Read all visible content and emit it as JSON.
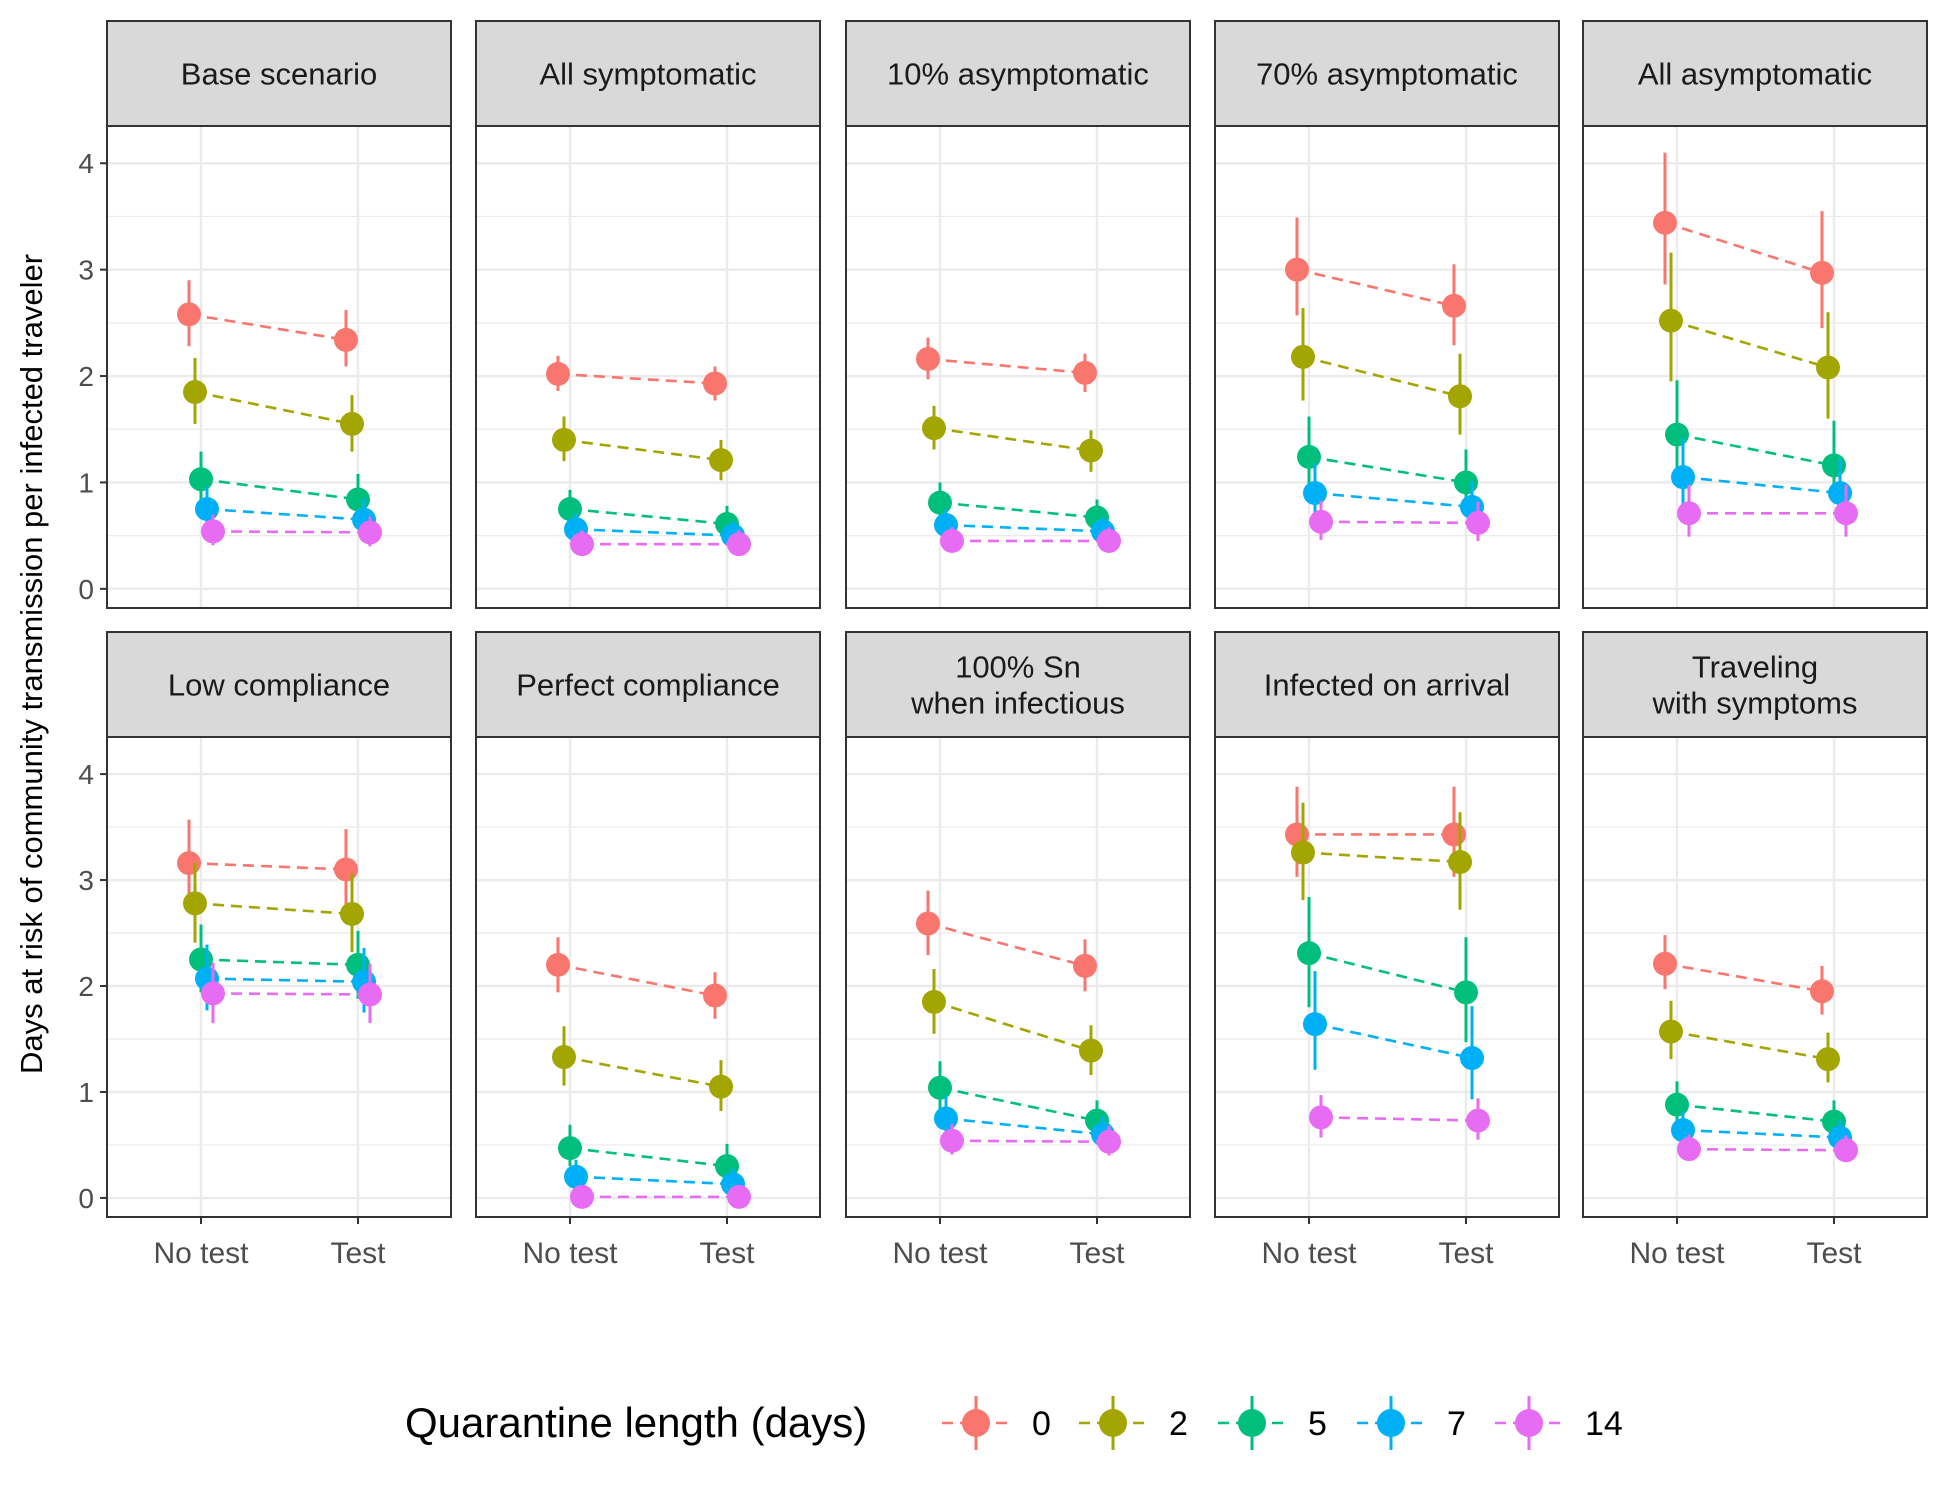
{
  "chart_data": {
    "type": "scatter",
    "ylabel": "Days at risk of community transmission per infected traveler",
    "xlabel": "",
    "x_categories": [
      "No test",
      "Test"
    ],
    "y_ticks": [
      0,
      1,
      2,
      3,
      4
    ],
    "ylim": [
      -0.18,
      4.35
    ],
    "grid": true,
    "legend": {
      "title": "Quarantine length (days)",
      "position": "bottom",
      "entries": [
        {
          "label": "0",
          "color": "#F8766D"
        },
        {
          "label": "2",
          "color": "#A3A500"
        },
        {
          "label": "5",
          "color": "#00BF7D"
        },
        {
          "label": "7",
          "color": "#00B0F6"
        },
        {
          "label": "14",
          "color": "#E76BF3"
        }
      ]
    },
    "facets": [
      {
        "title": [
          "Base scenario"
        ],
        "series": [
          {
            "quarantine": "0",
            "values": [
              2.58,
              2.34
            ],
            "lower": [
              2.28,
              2.09
            ],
            "upper": [
              2.9,
              2.62
            ]
          },
          {
            "quarantine": "2",
            "values": [
              1.85,
              1.55
            ],
            "lower": [
              1.55,
              1.29
            ],
            "upper": [
              2.17,
              1.82
            ]
          },
          {
            "quarantine": "5",
            "values": [
              1.03,
              0.84
            ],
            "lower": [
              0.82,
              0.63
            ],
            "upper": [
              1.29,
              1.08
            ]
          },
          {
            "quarantine": "7",
            "values": [
              0.75,
              0.65
            ],
            "lower": [
              0.58,
              0.49
            ],
            "upper": [
              0.96,
              0.85
            ]
          },
          {
            "quarantine": "14",
            "values": [
              0.54,
              0.53
            ],
            "lower": [
              0.41,
              0.4
            ],
            "upper": [
              0.7,
              0.68
            ]
          }
        ]
      },
      {
        "title": [
          "All symptomatic"
        ],
        "series": [
          {
            "quarantine": "0",
            "values": [
              2.02,
              1.93
            ],
            "lower": [
              1.86,
              1.77
            ],
            "upper": [
              2.19,
              2.09
            ]
          },
          {
            "quarantine": "2",
            "values": [
              1.4,
              1.21
            ],
            "lower": [
              1.2,
              1.02
            ],
            "upper": [
              1.62,
              1.4
            ]
          },
          {
            "quarantine": "5",
            "values": [
              0.75,
              0.61
            ],
            "lower": [
              0.6,
              0.47
            ],
            "upper": [
              0.93,
              0.78
            ]
          },
          {
            "quarantine": "7",
            "values": [
              0.56,
              0.5
            ],
            "lower": [
              0.44,
              0.38
            ],
            "upper": [
              0.71,
              0.64
            ]
          },
          {
            "quarantine": "14",
            "values": [
              0.42,
              0.42
            ],
            "lower": [
              0.31,
              0.31
            ],
            "upper": [
              0.55,
              0.55
            ]
          }
        ]
      },
      {
        "title": [
          "10% asymptomatic"
        ],
        "series": [
          {
            "quarantine": "0",
            "values": [
              2.16,
              2.03
            ],
            "lower": [
              1.97,
              1.85
            ],
            "upper": [
              2.36,
              2.21
            ]
          },
          {
            "quarantine": "2",
            "values": [
              1.51,
              1.3
            ],
            "lower": [
              1.31,
              1.1
            ],
            "upper": [
              1.72,
              1.49
            ]
          },
          {
            "quarantine": "5",
            "values": [
              0.81,
              0.67
            ],
            "lower": [
              0.64,
              0.52
            ],
            "upper": [
              1.0,
              0.84
            ]
          },
          {
            "quarantine": "7",
            "values": [
              0.6,
              0.54
            ],
            "lower": [
              0.47,
              0.42
            ],
            "upper": [
              0.75,
              0.68
            ]
          },
          {
            "quarantine": "14",
            "values": [
              0.45,
              0.45
            ],
            "lower": [
              0.34,
              0.34
            ],
            "upper": [
              0.58,
              0.58
            ]
          }
        ]
      },
      {
        "title": [
          "70% asymptomatic"
        ],
        "series": [
          {
            "quarantine": "0",
            "values": [
              3.0,
              2.66
            ],
            "lower": [
              2.57,
              2.29
            ],
            "upper": [
              3.49,
              3.05
            ]
          },
          {
            "quarantine": "2",
            "values": [
              2.18,
              1.81
            ],
            "lower": [
              1.77,
              1.45
            ],
            "upper": [
              2.64,
              2.21
            ]
          },
          {
            "quarantine": "5",
            "values": [
              1.24,
              1.0
            ],
            "lower": [
              0.94,
              0.74
            ],
            "upper": [
              1.62,
              1.31
            ]
          },
          {
            "quarantine": "7",
            "values": [
              0.9,
              0.77
            ],
            "lower": [
              0.67,
              0.57
            ],
            "upper": [
              1.18,
              1.01
            ]
          },
          {
            "quarantine": "14",
            "values": [
              0.63,
              0.62
            ],
            "lower": [
              0.46,
              0.45
            ],
            "upper": [
              0.83,
              0.82
            ]
          }
        ]
      },
      {
        "title": [
          "All asymptomatic"
        ],
        "series": [
          {
            "quarantine": "0",
            "values": [
              3.44,
              2.97
            ],
            "lower": [
              2.86,
              2.45
            ],
            "upper": [
              4.1,
              3.55
            ]
          },
          {
            "quarantine": "2",
            "values": [
              2.52,
              2.08
            ],
            "lower": [
              1.95,
              1.6
            ],
            "upper": [
              3.16,
              2.6
            ]
          },
          {
            "quarantine": "5",
            "values": [
              1.45,
              1.16
            ],
            "lower": [
              1.03,
              0.82
            ],
            "upper": [
              1.96,
              1.58
            ]
          },
          {
            "quarantine": "7",
            "values": [
              1.05,
              0.9
            ],
            "lower": [
              0.75,
              0.64
            ],
            "upper": [
              1.42,
              1.22
            ]
          },
          {
            "quarantine": "14",
            "values": [
              0.71,
              0.71
            ],
            "lower": [
              0.49,
              0.49
            ],
            "upper": [
              0.98,
              0.98
            ]
          }
        ]
      },
      {
        "title": [
          "Low compliance"
        ],
        "series": [
          {
            "quarantine": "0",
            "values": [
              3.16,
              3.1
            ],
            "lower": [
              2.8,
              2.73
            ],
            "upper": [
              3.57,
              3.48
            ]
          },
          {
            "quarantine": "2",
            "values": [
              2.78,
              2.68
            ],
            "lower": [
              2.41,
              2.32
            ],
            "upper": [
              3.16,
              3.06
            ]
          },
          {
            "quarantine": "5",
            "values": [
              2.25,
              2.2
            ],
            "lower": [
              1.94,
              1.88
            ],
            "upper": [
              2.58,
              2.52
            ]
          },
          {
            "quarantine": "7",
            "values": [
              2.07,
              2.04
            ],
            "lower": [
              1.77,
              1.75
            ],
            "upper": [
              2.39,
              2.36
            ]
          },
          {
            "quarantine": "14",
            "values": [
              1.93,
              1.92
            ],
            "lower": [
              1.65,
              1.65
            ],
            "upper": [
              2.22,
              2.21
            ]
          }
        ]
      },
      {
        "title": [
          "Perfect compliance"
        ],
        "series": [
          {
            "quarantine": "0",
            "values": [
              2.2,
              1.91
            ],
            "lower": [
              1.94,
              1.69
            ],
            "upper": [
              2.46,
              2.13
            ]
          },
          {
            "quarantine": "2",
            "values": [
              1.33,
              1.05
            ],
            "lower": [
              1.06,
              0.82
            ],
            "upper": [
              1.62,
              1.3
            ]
          },
          {
            "quarantine": "5",
            "values": [
              0.47,
              0.3
            ],
            "lower": [
              0.3,
              0.16
            ],
            "upper": [
              0.69,
              0.51
            ]
          },
          {
            "quarantine": "7",
            "values": [
              0.2,
              0.13
            ],
            "lower": [
              0.09,
              0.04
            ],
            "upper": [
              0.36,
              0.28
            ]
          },
          {
            "quarantine": "14",
            "values": [
              0.01,
              0.01
            ],
            "lower": [
              0.0,
              0.0
            ],
            "upper": [
              0.05,
              0.05
            ]
          }
        ]
      },
      {
        "title": [
          "100% Sn",
          "when infectious"
        ],
        "series": [
          {
            "quarantine": "0",
            "values": [
              2.59,
              2.19
            ],
            "lower": [
              2.29,
              1.95
            ],
            "upper": [
              2.9,
              2.44
            ]
          },
          {
            "quarantine": "2",
            "values": [
              1.85,
              1.39
            ],
            "lower": [
              1.55,
              1.16
            ],
            "upper": [
              2.16,
              1.63
            ]
          },
          {
            "quarantine": "5",
            "values": [
              1.04,
              0.73
            ],
            "lower": [
              0.82,
              0.56
            ],
            "upper": [
              1.29,
              0.92
            ]
          },
          {
            "quarantine": "7",
            "values": [
              0.75,
              0.6
            ],
            "lower": [
              0.58,
              0.45
            ],
            "upper": [
              0.96,
              0.77
            ]
          },
          {
            "quarantine": "14",
            "values": [
              0.54,
              0.53
            ],
            "lower": [
              0.41,
              0.4
            ],
            "upper": [
              0.7,
              0.68
            ]
          }
        ]
      },
      {
        "title": [
          "Infected on arrival"
        ],
        "series": [
          {
            "quarantine": "0",
            "values": [
              3.43,
              3.43
            ],
            "lower": [
              3.03,
              3.03
            ],
            "upper": [
              3.88,
              3.88
            ]
          },
          {
            "quarantine": "2",
            "values": [
              3.26,
              3.17
            ],
            "lower": [
              2.81,
              2.72
            ],
            "upper": [
              3.73,
              3.64
            ]
          },
          {
            "quarantine": "5",
            "values": [
              2.31,
              1.94
            ],
            "lower": [
              1.8,
              1.47
            ],
            "upper": [
              2.84,
              2.46
            ]
          },
          {
            "quarantine": "7",
            "values": [
              1.64,
              1.32
            ],
            "lower": [
              1.21,
              0.93
            ],
            "upper": [
              2.14,
              1.81
            ]
          },
          {
            "quarantine": "14",
            "values": [
              0.76,
              0.73
            ],
            "lower": [
              0.57,
              0.55
            ],
            "upper": [
              0.97,
              0.94
            ]
          }
        ]
      },
      {
        "title": [
          "Traveling",
          "with symptoms"
        ],
        "series": [
          {
            "quarantine": "0",
            "values": [
              2.21,
              1.95
            ],
            "lower": [
              1.97,
              1.73
            ],
            "upper": [
              2.48,
              2.19
            ]
          },
          {
            "quarantine": "2",
            "values": [
              1.57,
              1.31
            ],
            "lower": [
              1.31,
              1.09
            ],
            "upper": [
              1.86,
              1.56
            ]
          },
          {
            "quarantine": "5",
            "values": [
              0.88,
              0.72
            ],
            "lower": [
              0.69,
              0.55
            ],
            "upper": [
              1.1,
              0.92
            ]
          },
          {
            "quarantine": "7",
            "values": [
              0.64,
              0.57
            ],
            "lower": [
              0.5,
              0.44
            ],
            "upper": [
              0.81,
              0.73
            ]
          },
          {
            "quarantine": "14",
            "values": [
              0.46,
              0.45
            ],
            "lower": [
              0.35,
              0.34
            ],
            "upper": [
              0.6,
              0.59
            ]
          }
        ]
      }
    ]
  }
}
